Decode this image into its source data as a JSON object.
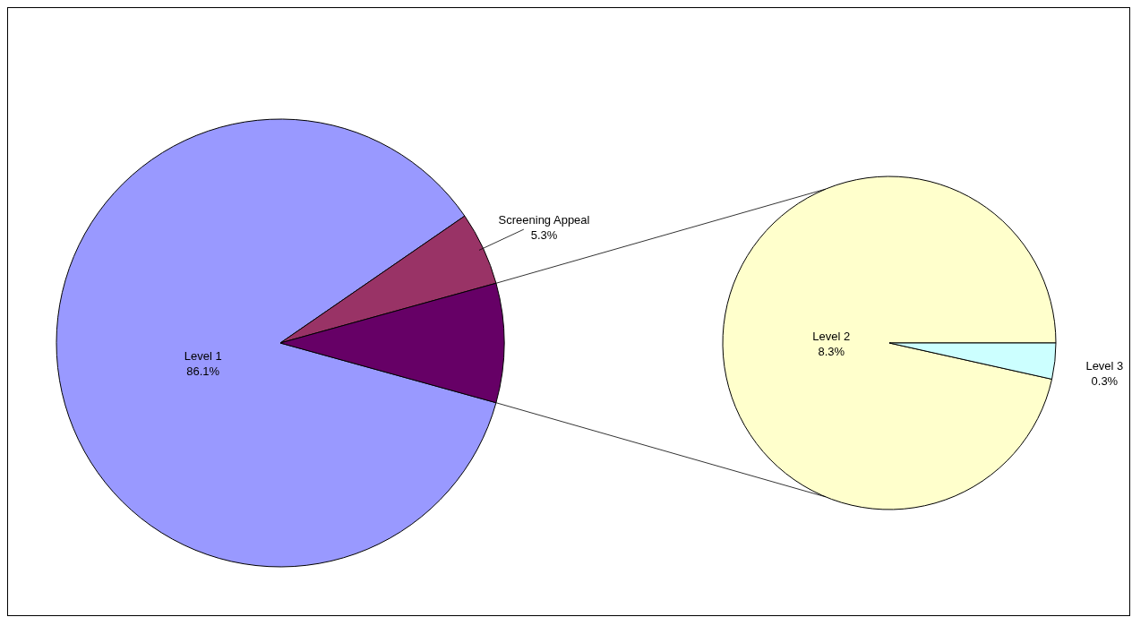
{
  "chart_data": [
    {
      "type": "pie",
      "categories": [
        "Level 1",
        "Screening Appeal",
        null
      ],
      "values": [
        86.1,
        5.3,
        8.6
      ],
      "colors": [
        "#9999ff",
        "#993366",
        "#660066"
      ],
      "value_labels": [
        "86.1%",
        "5.3%",
        null
      ]
    },
    {
      "type": "pie",
      "categories": [
        "Level 2",
        "Level 3"
      ],
      "values": [
        8.3,
        0.3
      ],
      "colors": [
        "#ffffcc",
        "#ccffff"
      ],
      "value_labels": [
        "8.3%",
        "0.3%"
      ]
    }
  ]
}
